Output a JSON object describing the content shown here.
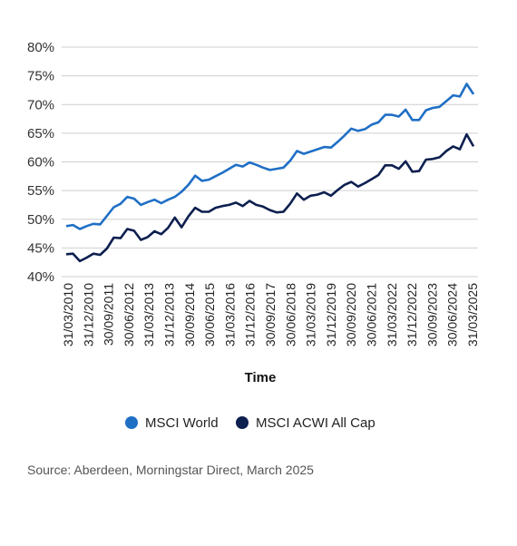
{
  "chart_data": {
    "type": "line",
    "xlabel": "Time",
    "ylabel": "",
    "ylim": [
      40,
      80
    ],
    "y_ticks": [
      "40%",
      "45%",
      "50%",
      "55%",
      "60%",
      "65%",
      "70%",
      "75%",
      "80%"
    ],
    "y_tick_values": [
      40,
      45,
      50,
      55,
      60,
      65,
      70,
      75,
      80
    ],
    "x_tick_labels": [
      "31/03/2010",
      "31/12/2010",
      "30/09/2011",
      "30/06/2012",
      "31/03/2013",
      "31/12/2013",
      "30/09/2014",
      "30/06/2015",
      "31/03/2016",
      "31/12/2016",
      "30/09/2017",
      "30/06/2018",
      "31/03/2019",
      "31/12/2019",
      "30/09/2020",
      "30/06/2021",
      "31/03/2022",
      "31/12/2022",
      "30/09/2023",
      "30/06/2024",
      "31/03/2025"
    ],
    "grid": true,
    "legend_position": "bottom",
    "series": [
      {
        "name": "MSCI World",
        "color": "#1f6fc5",
        "values": [
          48.8,
          49.0,
          48.3,
          48.8,
          49.2,
          49.1,
          50.6,
          52.1,
          52.7,
          53.9,
          53.6,
          52.5,
          53.0,
          53.4,
          52.8,
          53.4,
          53.9,
          54.8,
          56.0,
          57.6,
          56.7,
          56.9,
          57.5,
          58.1,
          58.8,
          59.5,
          59.2,
          59.9,
          59.5,
          59.0,
          58.6,
          58.8,
          59.0,
          60.2,
          61.9,
          61.4,
          61.8,
          62.2,
          62.6,
          62.5,
          63.5,
          64.6,
          65.8,
          65.4,
          65.7,
          66.5,
          66.9,
          68.2,
          68.2,
          67.9,
          69.1,
          67.3,
          67.3,
          69.0,
          69.4,
          69.6,
          70.6,
          71.6,
          71.4,
          73.6,
          71.8
        ]
      },
      {
        "name": "MSCI ACWI All Cap",
        "color": "#0d1f4f",
        "values": [
          43.9,
          44.0,
          42.7,
          43.3,
          44.0,
          43.8,
          44.9,
          46.8,
          46.7,
          48.3,
          48.0,
          46.4,
          46.9,
          47.9,
          47.4,
          48.5,
          50.3,
          48.6,
          50.5,
          52.0,
          51.3,
          51.3,
          52.0,
          52.3,
          52.5,
          52.9,
          52.3,
          53.2,
          52.5,
          52.2,
          51.6,
          51.2,
          51.3,
          52.7,
          54.5,
          53.4,
          54.1,
          54.3,
          54.7,
          54.1,
          55.1,
          56.0,
          56.5,
          55.7,
          56.3,
          57.0,
          57.7,
          59.4,
          59.4,
          58.8,
          60.1,
          58.3,
          58.4,
          60.4,
          60.5,
          60.8,
          61.9,
          62.7,
          62.2,
          64.8,
          62.7
        ]
      }
    ]
  },
  "legend": {
    "items": [
      "MSCI World",
      "MSCI ACWI All Cap"
    ]
  },
  "footer": {
    "source": "Source: Aberdeen, Morningstar Direct, March 2025"
  }
}
